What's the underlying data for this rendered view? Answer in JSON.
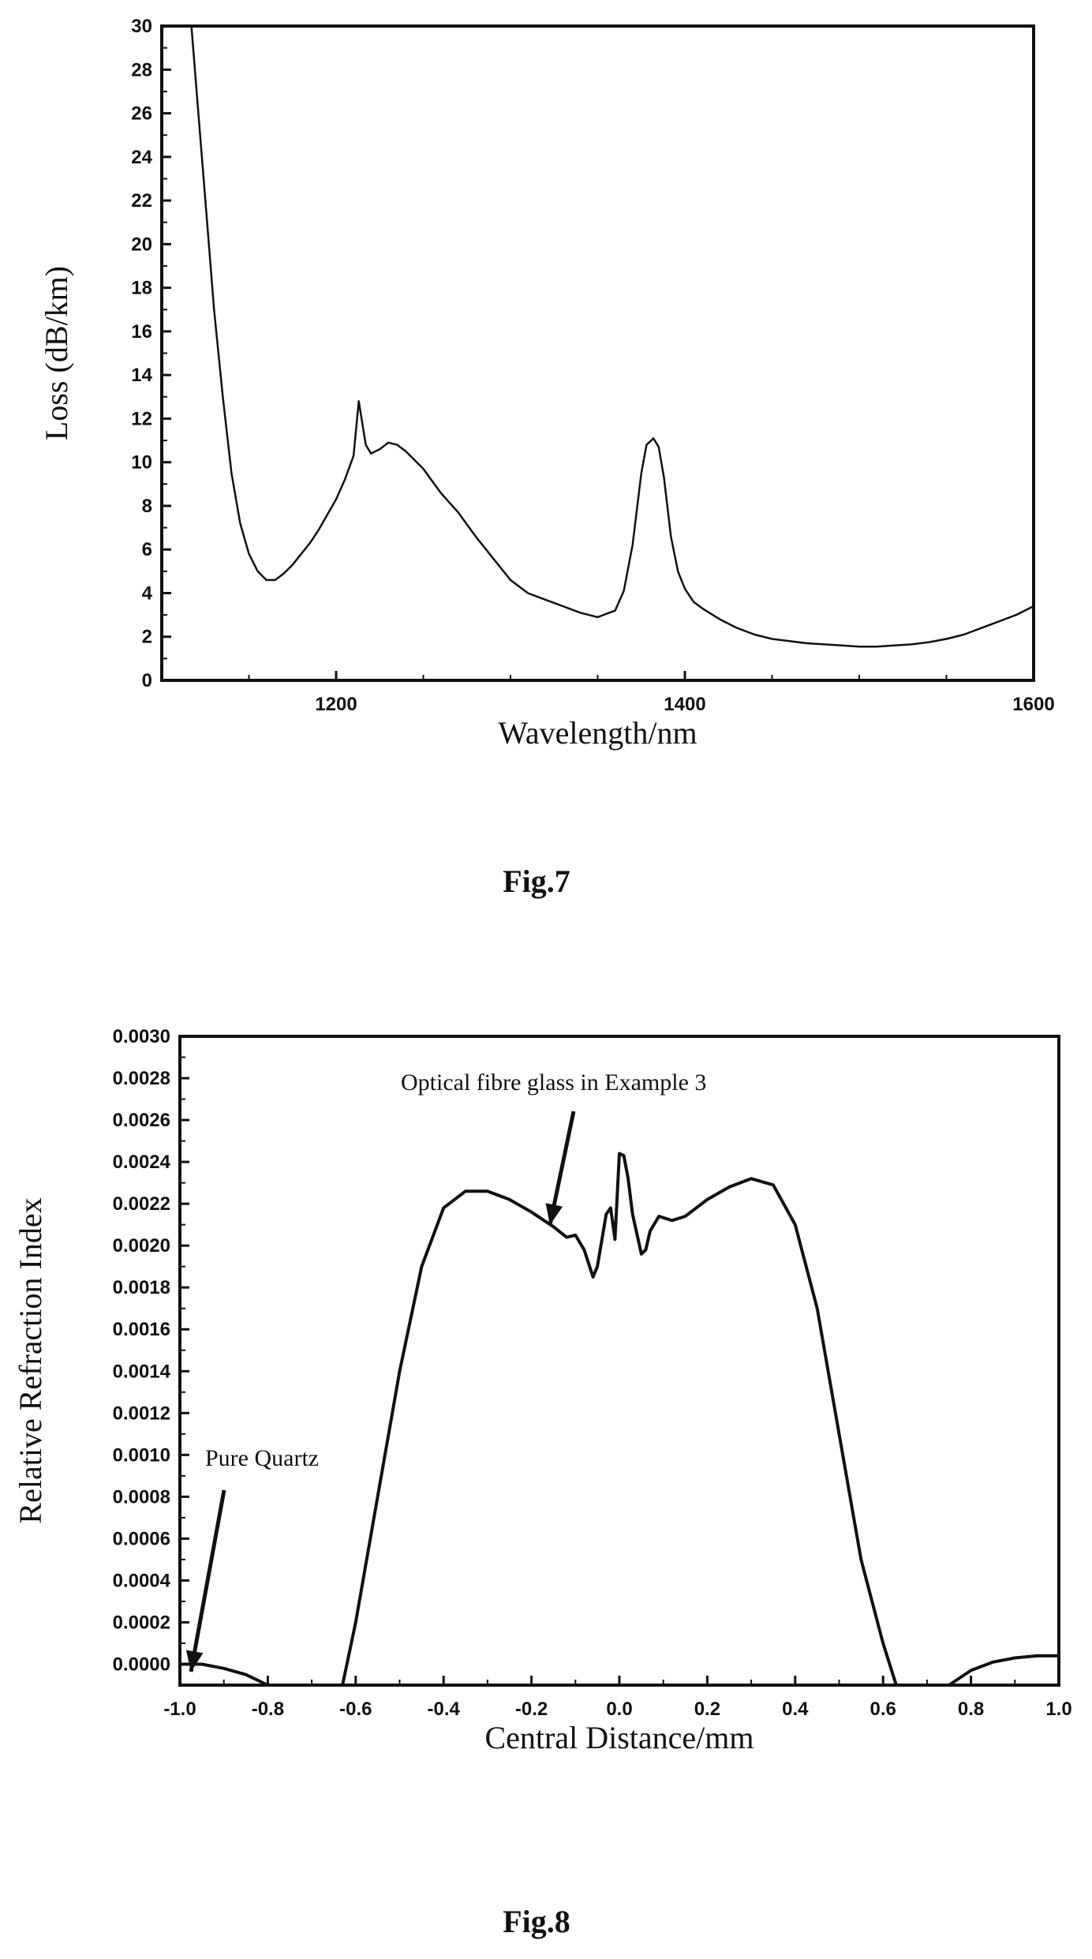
{
  "figures": [
    {
      "caption": "Fig.7"
    },
    {
      "caption": "Fig.8"
    }
  ],
  "chart_data": [
    {
      "type": "line",
      "xlabel": "Wavelength/nm",
      "ylabel": "Loss (dB/km)",
      "xlim": [
        1100,
        1600
      ],
      "ylim": [
        0,
        30
      ],
      "xticks": [
        1200,
        1400,
        1600
      ],
      "xtick_labels": [
        "1200",
        "1400",
        "1600"
      ],
      "yticks": [
        0,
        2,
        4,
        6,
        8,
        10,
        12,
        14,
        16,
        18,
        20,
        22,
        24,
        26,
        28,
        30
      ],
      "ytick_labels": [
        "0",
        "2",
        "4",
        "6",
        "8",
        "10",
        "12",
        "14",
        "16",
        "18",
        "20",
        "22",
        "24",
        "26",
        "28",
        "30"
      ],
      "grid": false,
      "series": [
        {
          "x": [
            1117,
            1120,
            1125,
            1130,
            1135,
            1140,
            1145,
            1150,
            1155,
            1160,
            1165,
            1170,
            1175,
            1180,
            1185,
            1190,
            1195,
            1200,
            1205,
            1210,
            1213,
            1217,
            1220,
            1225,
            1230,
            1235,
            1240,
            1250,
            1260,
            1270,
            1280,
            1290,
            1300,
            1310,
            1320,
            1330,
            1340,
            1350,
            1360,
            1365,
            1370,
            1375,
            1378,
            1382,
            1385,
            1388,
            1392,
            1396,
            1400,
            1405,
            1410,
            1420,
            1430,
            1440,
            1450,
            1460,
            1470,
            1480,
            1490,
            1500,
            1510,
            1520,
            1530,
            1540,
            1550,
            1560,
            1570,
            1580,
            1590,
            1600
          ],
          "y": [
            30,
            27,
            22,
            17,
            13,
            9.5,
            7.2,
            5.8,
            5.0,
            4.6,
            4.6,
            4.9,
            5.3,
            5.8,
            6.3,
            6.9,
            7.6,
            8.3,
            9.2,
            10.3,
            12.8,
            10.8,
            10.4,
            10.6,
            10.9,
            10.8,
            10.5,
            9.7,
            8.6,
            7.7,
            6.6,
            5.6,
            4.6,
            4.0,
            3.7,
            3.4,
            3.1,
            2.9,
            3.2,
            4.1,
            6.2,
            9.5,
            10.8,
            11.1,
            10.7,
            9.3,
            6.6,
            5.0,
            4.2,
            3.6,
            3.3,
            2.8,
            2.4,
            2.1,
            1.9,
            1.8,
            1.7,
            1.65,
            1.6,
            1.55,
            1.55,
            1.6,
            1.65,
            1.75,
            1.9,
            2.1,
            2.4,
            2.7,
            3.0,
            3.4
          ]
        }
      ]
    },
    {
      "type": "line",
      "xlabel": "Central Distance/mm",
      "ylabel": "Relative Refraction Index",
      "xlim": [
        -1.0,
        1.0
      ],
      "ylim": [
        -0.0001,
        0.003
      ],
      "xticks": [
        -1.0,
        -0.8,
        -0.6,
        -0.4,
        -0.2,
        0.0,
        0.2,
        0.4,
        0.6,
        0.8,
        1.0
      ],
      "xtick_labels": [
        "-1.0",
        "-0.8",
        "-0.6",
        "-0.4",
        "-0.2",
        "0.0",
        "0.2",
        "0.4",
        "0.6",
        "0.8",
        "1.0"
      ],
      "yticks": [
        0,
        0.0002,
        0.0004,
        0.0006,
        0.0008,
        0.001,
        0.0012,
        0.0014,
        0.0016,
        0.0018,
        0.002,
        0.0022,
        0.0024,
        0.0026,
        0.0028,
        0.003
      ],
      "ytick_labels": [
        "0.0000",
        "0.0002",
        "0.0004",
        "0.0006",
        "0.0008",
        "0.0010",
        "0.0012",
        "0.0014",
        "0.0016",
        "0.0018",
        "0.0020",
        "0.0022",
        "0.0024",
        "0.0026",
        "0.0028",
        "0.0030"
      ],
      "grid": false,
      "annotations": [
        {
          "text": "Optical fibre glass in Example 3"
        },
        {
          "text": "Pure Quartz"
        }
      ],
      "series": [
        {
          "segments": [
            {
              "x": [
                -1.0,
                -0.95,
                -0.9,
                -0.85,
                -0.8
              ],
              "y": [
                0.0,
                0.0,
                -2e-05,
                -5e-05,
                -0.0001
              ]
            },
            {
              "x": [
                -0.63,
                -0.6,
                -0.55,
                -0.5,
                -0.45,
                -0.4,
                -0.35,
                -0.3,
                -0.25,
                -0.2,
                -0.15,
                -0.12,
                -0.1,
                -0.08,
                -0.06,
                -0.05,
                -0.03,
                -0.02,
                -0.01,
                0.0,
                0.01,
                0.02,
                0.03,
                0.05,
                0.06,
                0.07,
                0.09,
                0.12,
                0.15,
                0.2,
                0.25,
                0.3,
                0.35,
                0.4,
                0.45,
                0.5,
                0.55,
                0.6,
                0.63
              ],
              "y": [
                -0.0001,
                0.0002,
                0.0008,
                0.0014,
                0.0019,
                0.00218,
                0.00226,
                0.00226,
                0.00222,
                0.00216,
                0.00209,
                0.00204,
                0.00205,
                0.00198,
                0.00185,
                0.0019,
                0.00215,
                0.00218,
                0.00203,
                0.00244,
                0.00243,
                0.00232,
                0.00215,
                0.00196,
                0.00198,
                0.00207,
                0.00214,
                0.00212,
                0.00214,
                0.00222,
                0.00228,
                0.00232,
                0.00229,
                0.0021,
                0.0017,
                0.0011,
                0.0005,
                0.0001,
                -0.0001
              ]
            },
            {
              "x": [
                0.75,
                0.8,
                0.85,
                0.9,
                0.95,
                1.0
              ],
              "y": [
                -0.0001,
                -3e-05,
                1e-05,
                3e-05,
                4e-05,
                4e-05
              ]
            }
          ]
        }
      ]
    }
  ]
}
